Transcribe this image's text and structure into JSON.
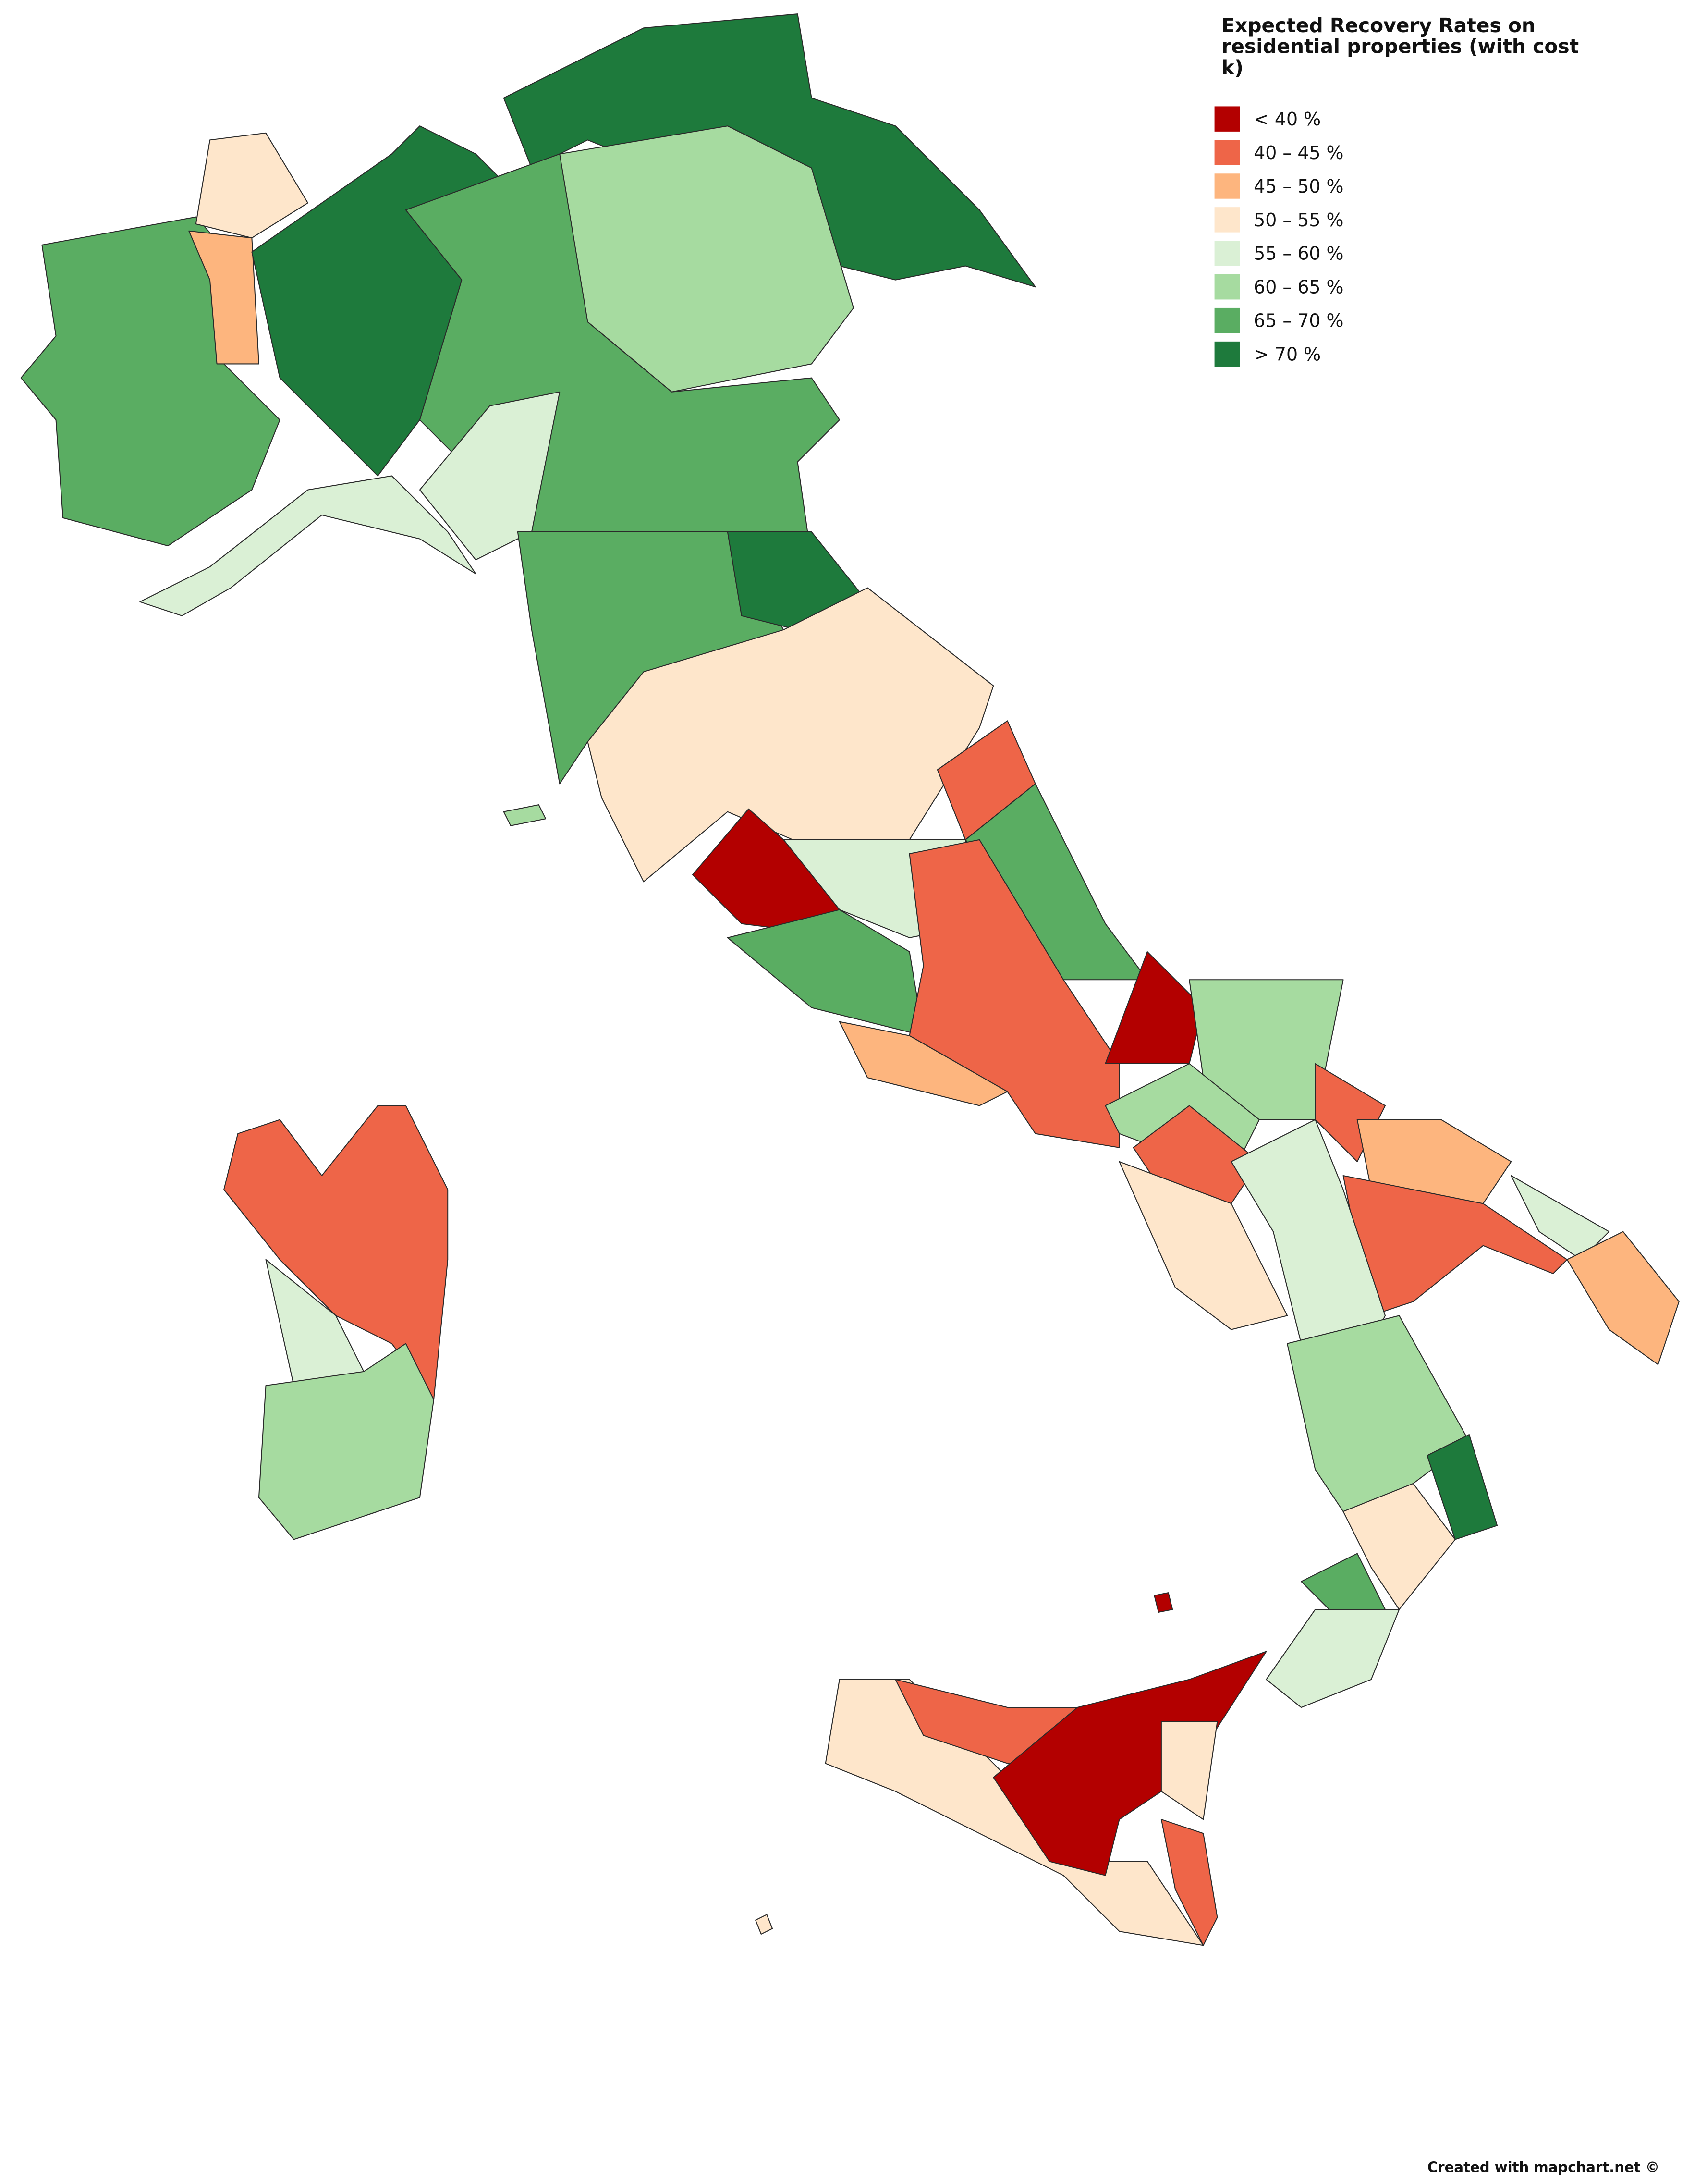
{
  "legend": {
    "title": "Expected Recovery Rates on residential properties (with cost k)",
    "items": [
      {
        "label": "< 40 %",
        "color": "#b30000"
      },
      {
        "label": "40 – 45 %",
        "color": "#ee6548"
      },
      {
        "label": "45 – 50 %",
        "color": "#fdb57e"
      },
      {
        "label": "50 – 55 %",
        "color": "#fee6cb"
      },
      {
        "label": "55 – 60 %",
        "color": "#daf0d5"
      },
      {
        "label": "60 – 65 %",
        "color": "#a6dba0"
      },
      {
        "label": "65 – 70 %",
        "color": "#5aad62"
      },
      {
        "label": "> 70 %",
        "color": "#1e7a3c"
      }
    ]
  },
  "credit": "Created with mapchart.net ©"
}
